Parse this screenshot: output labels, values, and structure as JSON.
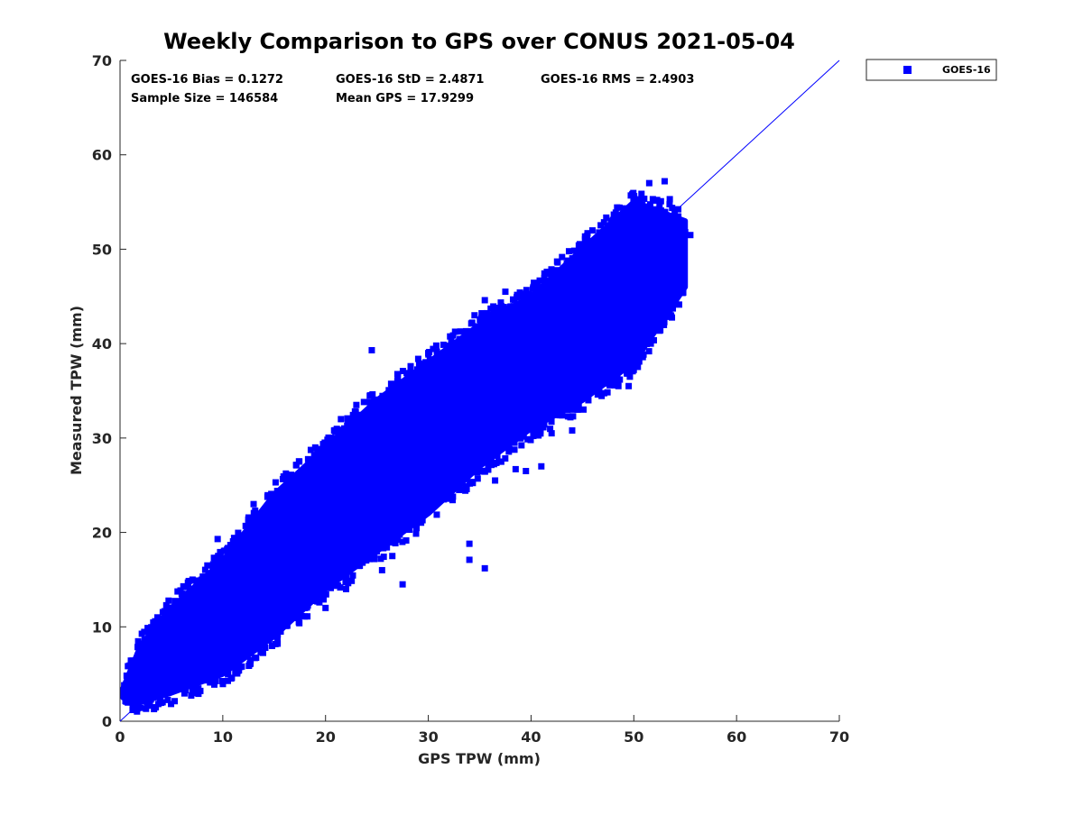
{
  "chart_data": {
    "type": "scatter",
    "title": "Weekly Comparison to GPS over CONUS 2021-05-04",
    "xlabel": "GPS TPW (mm)",
    "ylabel": "Measured TPW (mm)",
    "xlim": [
      0,
      70
    ],
    "ylim": [
      0,
      70
    ],
    "xticks": [
      "0",
      "10",
      "20",
      "30",
      "40",
      "50",
      "60",
      "70"
    ],
    "yticks": [
      "0",
      "10",
      "20",
      "30",
      "40",
      "50",
      "60",
      "70"
    ],
    "grid": false,
    "legend_position": "outside top-right",
    "reference_line": {
      "label": "1:1",
      "x": [
        0,
        70
      ],
      "y": [
        0,
        70
      ]
    },
    "color": "#0000ff",
    "annotations": [
      "GOES-16 Bias = 0.1272",
      "GOES-16 StD = 2.4871",
      "GOES-16 RMS = 2.4903",
      "Sample Size = 146584",
      "Mean GPS = 17.9299"
    ],
    "series": [
      {
        "name": "GOES-16",
        "marker": "square",
        "envelope": [
          {
            "x": 0.3,
            "y_min": 2.5,
            "y_max": 3.5
          },
          {
            "x": 2,
            "y_min": 2,
            "y_max": 8
          },
          {
            "x": 5,
            "y_min": 3,
            "y_max": 12
          },
          {
            "x": 10,
            "y_min": 5,
            "y_max": 17
          },
          {
            "x": 15,
            "y_min": 9,
            "y_max": 24
          },
          {
            "x": 20,
            "y_min": 14,
            "y_max": 29
          },
          {
            "x": 25,
            "y_min": 18,
            "y_max": 34
          },
          {
            "x": 30,
            "y_min": 22,
            "y_max": 38
          },
          {
            "x": 35,
            "y_min": 27,
            "y_max": 42
          },
          {
            "x": 40,
            "y_min": 31,
            "y_max": 45
          },
          {
            "x": 45,
            "y_min": 34,
            "y_max": 50
          },
          {
            "x": 50,
            "y_min": 38,
            "y_max": 55
          },
          {
            "x": 55,
            "y_min": 46,
            "y_max": 53
          }
        ],
        "outliers": [
          [
            24.5,
            39.3
          ],
          [
            34,
            18.8
          ],
          [
            34,
            17.1
          ],
          [
            35.5,
            16.2
          ],
          [
            27.5,
            14.5
          ],
          [
            25.5,
            16
          ],
          [
            26.5,
            17.5
          ],
          [
            42,
            30.5
          ],
          [
            44,
            30.8
          ],
          [
            43.5,
            33
          ],
          [
            48.5,
            35.5
          ],
          [
            49.5,
            35.5
          ],
          [
            51,
            46
          ],
          [
            52.5,
            47
          ],
          [
            54,
            46.1
          ],
          [
            51,
            54.5
          ],
          [
            51.5,
            57
          ],
          [
            53,
            57.2
          ],
          [
            53.5,
            55.3
          ],
          [
            55.5,
            51.5
          ],
          [
            55,
            51.8
          ],
          [
            47,
            51.5
          ],
          [
            46.5,
            49
          ],
          [
            27,
            34
          ],
          [
            28,
            35.5
          ],
          [
            29.5,
            37.5
          ],
          [
            32.5,
            40
          ],
          [
            34.5,
            43
          ],
          [
            35.5,
            44.6
          ],
          [
            37.5,
            45.5
          ],
          [
            2.5,
            2.3
          ],
          [
            3,
            2.3
          ],
          [
            1,
            2.8
          ],
          [
            20,
            12
          ],
          [
            22,
            14
          ],
          [
            31.5,
            23.5
          ],
          [
            33,
            24.5
          ],
          [
            36.5,
            25.5
          ],
          [
            38.5,
            26.7
          ],
          [
            46,
            50.5
          ],
          [
            21.5,
            32
          ],
          [
            19,
            29
          ],
          [
            23,
            33.5
          ],
          [
            30,
            23.3
          ],
          [
            39.5,
            26.5
          ],
          [
            41,
            27
          ],
          [
            8.5,
            16.5
          ],
          [
            12,
            19.3
          ],
          [
            9.5,
            19.3
          ],
          [
            13,
            23
          ],
          [
            15,
            24
          ],
          [
            6,
            13.5
          ],
          [
            18.5,
            26
          ]
        ]
      }
    ]
  }
}
